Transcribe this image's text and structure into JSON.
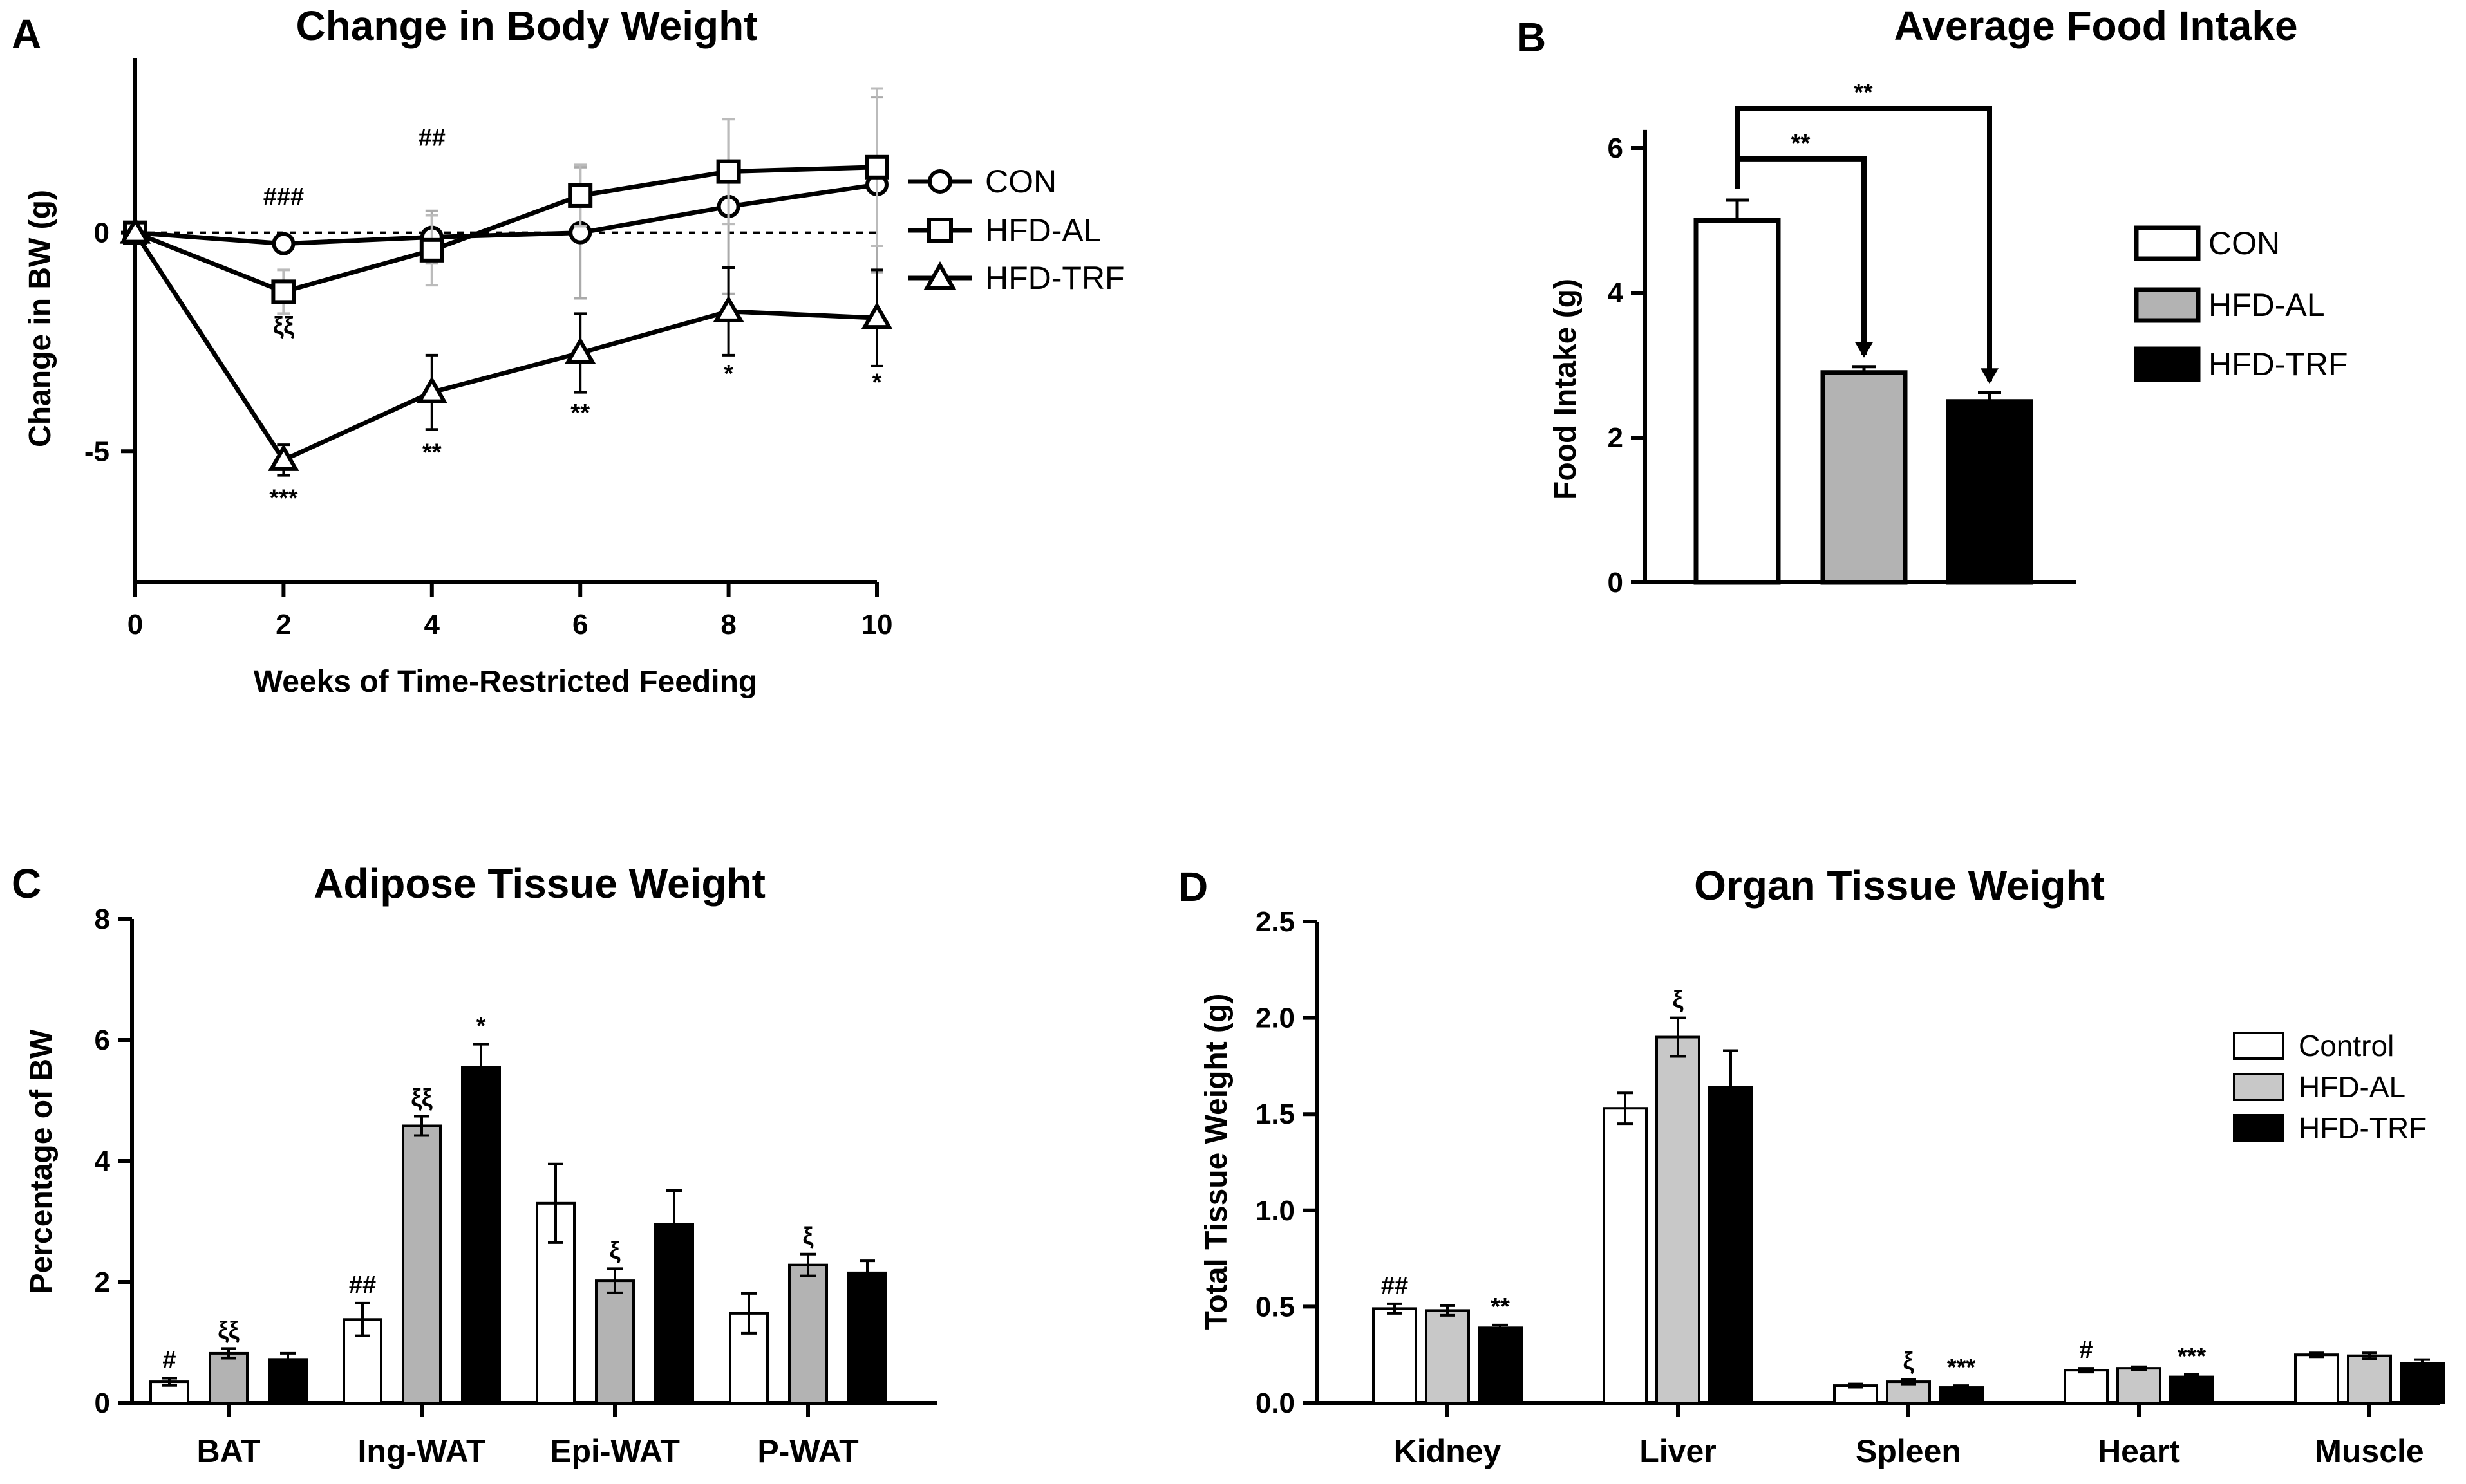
{
  "colors": {
    "con": "#ffffff",
    "al": "#b3b3b3",
    "trf": "#000000",
    "lightbar": "#c8c8c8"
  },
  "chart_data": [
    {
      "id": "A",
      "type": "line",
      "panel_label": "A",
      "title": "Change in Body Weight",
      "xlabel": "Weeks of Time-Restricted Feeding",
      "ylabel": "Change in BW (g)",
      "xlim": [
        0,
        10
      ],
      "ylim": [
        -8,
        4
      ],
      "xticks": [
        0,
        2,
        4,
        6,
        8,
        10
      ],
      "yticks": [
        0,
        -5
      ],
      "reference_line": 0,
      "legend_position": "right",
      "x": [
        0,
        2,
        4,
        6,
        8,
        10
      ],
      "series": [
        {
          "name": "CON",
          "marker": "circle",
          "values": [
            0,
            -0.25,
            -0.1,
            0,
            0.6,
            1.1
          ],
          "errors": [
            0,
            0,
            0.6,
            1.5,
            2,
            2
          ]
        },
        {
          "name": "HFD-AL",
          "marker": "square",
          "values": [
            0,
            -1.35,
            -0.4,
            0.85,
            1.4,
            1.5
          ],
          "errors": [
            0,
            0.5,
            0.8,
            0.7,
            1.2,
            1.8
          ]
        },
        {
          "name": "HFD-TRF",
          "marker": "triangle",
          "values": [
            0,
            -5.2,
            -3.65,
            -2.75,
            -1.8,
            -1.95
          ],
          "errors": [
            0,
            0.35,
            0.85,
            0.9,
            1,
            1.1
          ]
        }
      ],
      "annotations": [
        {
          "x": 2,
          "y": 0.85,
          "text": "###"
        },
        {
          "x": 4,
          "y": 2.2,
          "text": "##"
        },
        {
          "x": 2,
          "y": -2.1,
          "text": "ξξ"
        },
        {
          "x": 2,
          "y": -6.05,
          "text": "***"
        },
        {
          "x": 4,
          "y": -5,
          "text": "**"
        },
        {
          "x": 6,
          "y": -4.1,
          "text": "**"
        },
        {
          "x": 8,
          "y": -3.2,
          "text": "*"
        },
        {
          "x": 10,
          "y": -3.4,
          "text": "*"
        }
      ]
    },
    {
      "id": "B",
      "type": "bar",
      "panel_label": "B",
      "title": "Average Food Intake",
      "xlabel": "",
      "ylabel": "Food Intake (g)",
      "ylim": [
        0,
        6.5
      ],
      "yticks": [
        0,
        2,
        4,
        6
      ],
      "legend_position": "right",
      "categories": [
        "CON",
        "HFD-AL",
        "HFD-TRF"
      ],
      "values": [
        5.0,
        2.9,
        2.5
      ],
      "errors": [
        0.28,
        0.08,
        0.12
      ],
      "brackets": [
        {
          "from": 0,
          "to": 1,
          "y": 5.85,
          "text": "**"
        },
        {
          "from": 0,
          "to": 2,
          "y": 6.55,
          "text": "**"
        }
      ]
    },
    {
      "id": "C",
      "type": "bar",
      "panel_label": "C",
      "title": "Adipose Tissue Weight",
      "xlabel": "",
      "ylabel": "Percentage of BW",
      "ylim": [
        0,
        8
      ],
      "yticks": [
        0,
        2,
        4,
        6,
        8
      ],
      "categories": [
        "BAT",
        "Ing-WAT",
        "Epi-WAT",
        "P-WAT"
      ],
      "series": [
        {
          "name": "CON",
          "values": [
            0.35,
            1.38,
            3.3,
            1.48
          ],
          "errors": [
            0.06,
            0.27,
            0.65,
            0.33
          ]
        },
        {
          "name": "HFD-AL",
          "values": [
            0.82,
            4.58,
            2.02,
            2.28
          ],
          "errors": [
            0.08,
            0.16,
            0.2,
            0.18
          ]
        },
        {
          "name": "HFD-TRF",
          "values": [
            0.72,
            5.55,
            2.95,
            2.15
          ],
          "errors": [
            0.1,
            0.38,
            0.56,
            0.2
          ]
        }
      ],
      "annotations": [
        {
          "group": 0,
          "series": 0,
          "text": "#"
        },
        {
          "group": 0,
          "series": 1,
          "text": "ξξ"
        },
        {
          "group": 1,
          "series": 0,
          "text": "##"
        },
        {
          "group": 1,
          "series": 1,
          "text": "ξξ"
        },
        {
          "group": 1,
          "series": 2,
          "text": "*"
        },
        {
          "group": 2,
          "series": 1,
          "text": "ξ"
        },
        {
          "group": 3,
          "series": 1,
          "text": "ξ"
        }
      ]
    },
    {
      "id": "D",
      "type": "bar",
      "panel_label": "D",
      "title": "Organ Tissue Weight",
      "xlabel": "",
      "ylabel": "Total Tissue Weight (g)",
      "ylim": [
        0,
        2.5
      ],
      "yticks": [
        "0.0",
        "0.5",
        "1.0",
        "1.5",
        "2.0",
        "2.5"
      ],
      "legend_position": "right",
      "categories": [
        "Kidney",
        "Liver",
        "Spleen",
        "Heart",
        "Muscle"
      ],
      "series": [
        {
          "name": "Control",
          "values": [
            0.49,
            1.53,
            0.09,
            0.17,
            0.25
          ],
          "errors": [
            0.025,
            0.08,
            0.008,
            0.01,
            0.01
          ]
        },
        {
          "name": "HFD-AL",
          "values": [
            0.48,
            1.9,
            0.11,
            0.18,
            0.245
          ],
          "errors": [
            0.025,
            0.1,
            0.012,
            0.008,
            0.015
          ]
        },
        {
          "name": "HFD-TRF",
          "values": [
            0.39,
            1.64,
            0.08,
            0.135,
            0.205
          ],
          "errors": [
            0.015,
            0.19,
            0.01,
            0.012,
            0.02
          ]
        }
      ],
      "annotations": [
        {
          "group": 0,
          "series": 0,
          "text": "##"
        },
        {
          "group": 0,
          "series": 2,
          "text": "**"
        },
        {
          "group": 1,
          "series": 1,
          "text": "ξ"
        },
        {
          "group": 2,
          "series": 1,
          "text": "ξ"
        },
        {
          "group": 2,
          "series": 2,
          "text": "***"
        },
        {
          "group": 3,
          "series": 0,
          "text": "#"
        },
        {
          "group": 3,
          "series": 2,
          "text": "***"
        }
      ]
    }
  ]
}
